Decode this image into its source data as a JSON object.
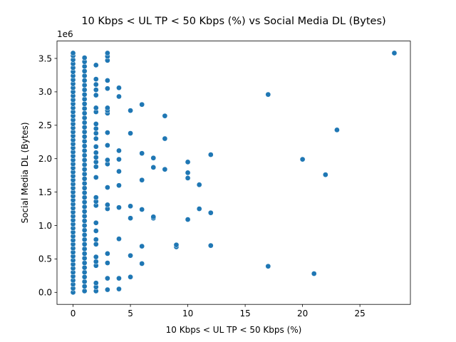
{
  "chart_data": {
    "type": "scatter",
    "title": "10 Kbps < UL TP < 50 Kbps (%) vs Social Media DL (Bytes)",
    "xlabel": "10 Kbps < UL TP < 50 Kbps (%)",
    "ylabel": "Social Media DL (Bytes)",
    "y_offset_label": "1e6",
    "xlim": [
      -1.4,
      29.4
    ],
    "ylim": [
      -180000,
      3760000
    ],
    "x_ticks": [
      0,
      5,
      10,
      15,
      20,
      25
    ],
    "x_tick_labels": [
      "0",
      "5",
      "10",
      "15",
      "20",
      "25"
    ],
    "y_ticks": [
      0,
      500000,
      1000000,
      1500000,
      2000000,
      2500000,
      3000000,
      3500000
    ],
    "y_tick_labels": [
      "0.0",
      "0.5",
      "1.0",
      "1.5",
      "2.0",
      "2.5",
      "3.0",
      "3.5"
    ],
    "grid": false,
    "legend": "none",
    "marker_color": "#1f77b4",
    "marker_edge_color": "#ffffff",
    "series": [
      {
        "points": [
          [
            0,
            0
          ],
          [
            0,
            60000
          ],
          [
            0,
            120000
          ],
          [
            0,
            180000
          ],
          [
            0,
            240000
          ],
          [
            0,
            300000
          ],
          [
            0,
            360000
          ],
          [
            0,
            420000
          ],
          [
            0,
            480000
          ],
          [
            0,
            540000
          ],
          [
            0,
            600000
          ],
          [
            0,
            660000
          ],
          [
            0,
            720000
          ],
          [
            0,
            780000
          ],
          [
            0,
            840000
          ],
          [
            0,
            900000
          ],
          [
            0,
            960000
          ],
          [
            0,
            1020000
          ],
          [
            0,
            1080000
          ],
          [
            0,
            1140000
          ],
          [
            0,
            1200000
          ],
          [
            0,
            1260000
          ],
          [
            0,
            1320000
          ],
          [
            0,
            1380000
          ],
          [
            0,
            1440000
          ],
          [
            0,
            1500000
          ],
          [
            0,
            1560000
          ],
          [
            0,
            1620000
          ],
          [
            0,
            1680000
          ],
          [
            0,
            1740000
          ],
          [
            0,
            1800000
          ],
          [
            0,
            1860000
          ],
          [
            0,
            1920000
          ],
          [
            0,
            1980000
          ],
          [
            0,
            2040000
          ],
          [
            0,
            2100000
          ],
          [
            0,
            2160000
          ],
          [
            0,
            2220000
          ],
          [
            0,
            2280000
          ],
          [
            0,
            2340000
          ],
          [
            0,
            2400000
          ],
          [
            0,
            2460000
          ],
          [
            0,
            2520000
          ],
          [
            0,
            2580000
          ],
          [
            0,
            2640000
          ],
          [
            0,
            2700000
          ],
          [
            0,
            2760000
          ],
          [
            0,
            2820000
          ],
          [
            0,
            2880000
          ],
          [
            0,
            2940000
          ],
          [
            0,
            3000000
          ],
          [
            0,
            3060000
          ],
          [
            0,
            3120000
          ],
          [
            0,
            3180000
          ],
          [
            0,
            3240000
          ],
          [
            0,
            3300000
          ],
          [
            0,
            3360000
          ],
          [
            0,
            3420000
          ],
          [
            0,
            3480000
          ],
          [
            0,
            3540000
          ],
          [
            0,
            3580000
          ],
          [
            1,
            20000
          ],
          [
            1,
            90000
          ],
          [
            1,
            160000
          ],
          [
            1,
            230000
          ],
          [
            1,
            300000
          ],
          [
            1,
            370000
          ],
          [
            1,
            440000
          ],
          [
            1,
            510000
          ],
          [
            1,
            580000
          ],
          [
            1,
            650000
          ],
          [
            1,
            720000
          ],
          [
            1,
            790000
          ],
          [
            1,
            860000
          ],
          [
            1,
            930000
          ],
          [
            1,
            1000000
          ],
          [
            1,
            1070000
          ],
          [
            1,
            1140000
          ],
          [
            1,
            1210000
          ],
          [
            1,
            1280000
          ],
          [
            1,
            1350000
          ],
          [
            1,
            1420000
          ],
          [
            1,
            1490000
          ],
          [
            1,
            1560000
          ],
          [
            1,
            1630000
          ],
          [
            1,
            1700000
          ],
          [
            1,
            1770000
          ],
          [
            1,
            1840000
          ],
          [
            1,
            1910000
          ],
          [
            1,
            1980000
          ],
          [
            1,
            2050000
          ],
          [
            1,
            2120000
          ],
          [
            1,
            2190000
          ],
          [
            1,
            2260000
          ],
          [
            1,
            2330000
          ],
          [
            1,
            2400000
          ],
          [
            1,
            2470000
          ],
          [
            1,
            2540000
          ],
          [
            1,
            2610000
          ],
          [
            1,
            2680000
          ],
          [
            1,
            2750000
          ],
          [
            1,
            2820000
          ],
          [
            1,
            2890000
          ],
          [
            1,
            2960000
          ],
          [
            1,
            3030000
          ],
          [
            1,
            3100000
          ],
          [
            1,
            3170000
          ],
          [
            1,
            3240000
          ],
          [
            1,
            3310000
          ],
          [
            1,
            3380000
          ],
          [
            1,
            3450000
          ],
          [
            1,
            3510000
          ],
          [
            2,
            20000
          ],
          [
            2,
            80000
          ],
          [
            2,
            140000
          ],
          [
            2,
            400000
          ],
          [
            2,
            460000
          ],
          [
            2,
            530000
          ],
          [
            2,
            720000
          ],
          [
            2,
            790000
          ],
          [
            2,
            920000
          ],
          [
            2,
            1040000
          ],
          [
            2,
            1300000
          ],
          [
            2,
            1360000
          ],
          [
            2,
            1420000
          ],
          [
            2,
            1720000
          ],
          [
            2,
            1880000
          ],
          [
            2,
            1950000
          ],
          [
            2,
            2020000
          ],
          [
            2,
            2090000
          ],
          [
            2,
            2180000
          ],
          [
            2,
            2300000
          ],
          [
            2,
            2380000
          ],
          [
            2,
            2450000
          ],
          [
            2,
            2520000
          ],
          [
            2,
            2700000
          ],
          [
            2,
            2760000
          ],
          [
            2,
            2950000
          ],
          [
            2,
            3030000
          ],
          [
            2,
            3110000
          ],
          [
            2,
            3190000
          ],
          [
            2,
            3400000
          ],
          [
            3,
            40000
          ],
          [
            3,
            210000
          ],
          [
            3,
            440000
          ],
          [
            3,
            580000
          ],
          [
            3,
            1250000
          ],
          [
            3,
            1310000
          ],
          [
            3,
            1570000
          ],
          [
            3,
            1920000
          ],
          [
            3,
            1980000
          ],
          [
            3,
            2200000
          ],
          [
            3,
            2390000
          ],
          [
            3,
            2680000
          ],
          [
            3,
            2720000
          ],
          [
            3,
            2760000
          ],
          [
            3,
            3050000
          ],
          [
            3,
            3170000
          ],
          [
            3,
            3470000
          ],
          [
            3,
            3530000
          ],
          [
            3,
            3580000
          ],
          [
            4,
            50000
          ],
          [
            4,
            210000
          ],
          [
            4,
            800000
          ],
          [
            4,
            1270000
          ],
          [
            4,
            1600000
          ],
          [
            4,
            1810000
          ],
          [
            4,
            1990000
          ],
          [
            4,
            2120000
          ],
          [
            4,
            2930000
          ],
          [
            4,
            3060000
          ],
          [
            5,
            230000
          ],
          [
            5,
            550000
          ],
          [
            5,
            1110000
          ],
          [
            5,
            1290000
          ],
          [
            5,
            2380000
          ],
          [
            5,
            2720000
          ],
          [
            6,
            430000
          ],
          [
            6,
            690000
          ],
          [
            6,
            1240000
          ],
          [
            6,
            1680000
          ],
          [
            6,
            2080000
          ],
          [
            6,
            2810000
          ],
          [
            7,
            1110000
          ],
          [
            7,
            1130000
          ],
          [
            7,
            1870000
          ],
          [
            7,
            2010000
          ],
          [
            8,
            1840000
          ],
          [
            8,
            2300000
          ],
          [
            8,
            2640000
          ],
          [
            9,
            680000
          ],
          [
            9,
            710000
          ],
          [
            10,
            1090000
          ],
          [
            10,
            1710000
          ],
          [
            10,
            1790000
          ],
          [
            10,
            1950000
          ],
          [
            11,
            1250000
          ],
          [
            11,
            1610000
          ],
          [
            12,
            700000
          ],
          [
            12,
            1190000
          ],
          [
            12,
            2060000
          ],
          [
            17,
            390000
          ],
          [
            17,
            2960000
          ],
          [
            20,
            1990000
          ],
          [
            21,
            280000
          ],
          [
            22,
            1760000
          ],
          [
            23,
            2430000
          ],
          [
            28,
            3580000
          ]
        ]
      }
    ]
  }
}
